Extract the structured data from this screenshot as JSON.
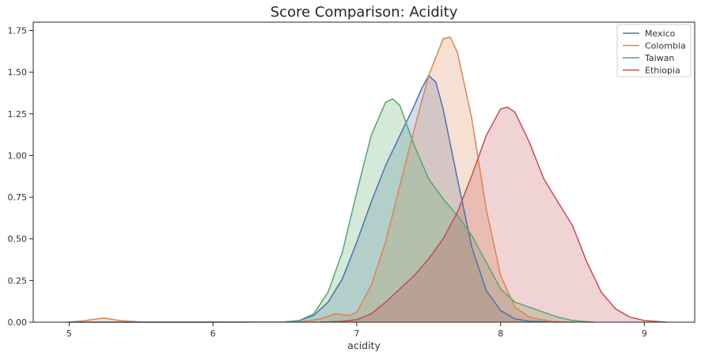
{
  "chart_data": {
    "type": "area",
    "title": "Score Comparison: Acidity",
    "xlabel": "acidity",
    "ylabel": "",
    "xlim": [
      4.75,
      9.35
    ],
    "ylim": [
      0,
      1.8
    ],
    "xticks": [
      "5",
      "6",
      "7",
      "8",
      "9"
    ],
    "yticks": [
      "0.00",
      "0.25",
      "0.50",
      "0.75",
      "1.00",
      "1.25",
      "1.50",
      "1.75"
    ],
    "grid": false,
    "legend_position": "top-right",
    "series": [
      {
        "name": "Mexico",
        "color": "#4c72b0",
        "points": [
          [
            5,
            0
          ],
          [
            6,
            0
          ],
          [
            6.5,
            0.002
          ],
          [
            6.6,
            0.01
          ],
          [
            6.7,
            0.04
          ],
          [
            6.8,
            0.12
          ],
          [
            6.9,
            0.26
          ],
          [
            7.0,
            0.48
          ],
          [
            7.1,
            0.72
          ],
          [
            7.2,
            0.94
          ],
          [
            7.3,
            1.12
          ],
          [
            7.4,
            1.3
          ],
          [
            7.45,
            1.4
          ],
          [
            7.5,
            1.48
          ],
          [
            7.55,
            1.44
          ],
          [
            7.6,
            1.28
          ],
          [
            7.7,
            0.86
          ],
          [
            7.8,
            0.45
          ],
          [
            7.9,
            0.19
          ],
          [
            8.0,
            0.07
          ],
          [
            8.1,
            0.02
          ],
          [
            8.2,
            0.005
          ],
          [
            8.4,
            0
          ]
        ]
      },
      {
        "name": "Colombia",
        "color": "#dd8452",
        "points": [
          [
            4.98,
            0
          ],
          [
            5.1,
            0.008
          ],
          [
            5.24,
            0.025
          ],
          [
            5.35,
            0.01
          ],
          [
            5.5,
            0.001
          ],
          [
            6.6,
            0.002
          ],
          [
            6.75,
            0.02
          ],
          [
            6.85,
            0.05
          ],
          [
            6.95,
            0.04
          ],
          [
            7.0,
            0.06
          ],
          [
            7.1,
            0.22
          ],
          [
            7.2,
            0.48
          ],
          [
            7.3,
            0.82
          ],
          [
            7.4,
            1.16
          ],
          [
            7.5,
            1.48
          ],
          [
            7.6,
            1.7
          ],
          [
            7.65,
            1.71
          ],
          [
            7.7,
            1.62
          ],
          [
            7.8,
            1.22
          ],
          [
            7.9,
            0.68
          ],
          [
            8.0,
            0.28
          ],
          [
            8.1,
            0.09
          ],
          [
            8.2,
            0.03
          ],
          [
            8.35,
            0.005
          ],
          [
            8.5,
            0
          ]
        ]
      },
      {
        "name": "Taiwan",
        "color": "#55a868",
        "points": [
          [
            6.5,
            0
          ],
          [
            6.6,
            0.01
          ],
          [
            6.7,
            0.05
          ],
          [
            6.8,
            0.18
          ],
          [
            6.9,
            0.42
          ],
          [
            7.0,
            0.78
          ],
          [
            7.1,
            1.12
          ],
          [
            7.2,
            1.32
          ],
          [
            7.25,
            1.34
          ],
          [
            7.3,
            1.3
          ],
          [
            7.4,
            1.06
          ],
          [
            7.5,
            0.86
          ],
          [
            7.6,
            0.74
          ],
          [
            7.7,
            0.64
          ],
          [
            7.8,
            0.52
          ],
          [
            7.9,
            0.36
          ],
          [
            8.0,
            0.2
          ],
          [
            8.1,
            0.12
          ],
          [
            8.2,
            0.09
          ],
          [
            8.3,
            0.06
          ],
          [
            8.4,
            0.03
          ],
          [
            8.5,
            0.01
          ],
          [
            8.65,
            0
          ]
        ]
      },
      {
        "name": "Ethiopia",
        "color": "#c44e52",
        "points": [
          [
            6.75,
            0
          ],
          [
            6.9,
            0.005
          ],
          [
            7.0,
            0.015
          ],
          [
            7.1,
            0.05
          ],
          [
            7.2,
            0.12
          ],
          [
            7.3,
            0.2
          ],
          [
            7.4,
            0.28
          ],
          [
            7.5,
            0.38
          ],
          [
            7.6,
            0.5
          ],
          [
            7.7,
            0.66
          ],
          [
            7.8,
            0.88
          ],
          [
            7.9,
            1.12
          ],
          [
            8.0,
            1.28
          ],
          [
            8.05,
            1.29
          ],
          [
            8.1,
            1.26
          ],
          [
            8.2,
            1.08
          ],
          [
            8.3,
            0.86
          ],
          [
            8.4,
            0.72
          ],
          [
            8.5,
            0.58
          ],
          [
            8.6,
            0.36
          ],
          [
            8.7,
            0.18
          ],
          [
            8.8,
            0.08
          ],
          [
            8.9,
            0.03
          ],
          [
            9.0,
            0.01
          ],
          [
            9.15,
            0
          ]
        ]
      }
    ]
  }
}
